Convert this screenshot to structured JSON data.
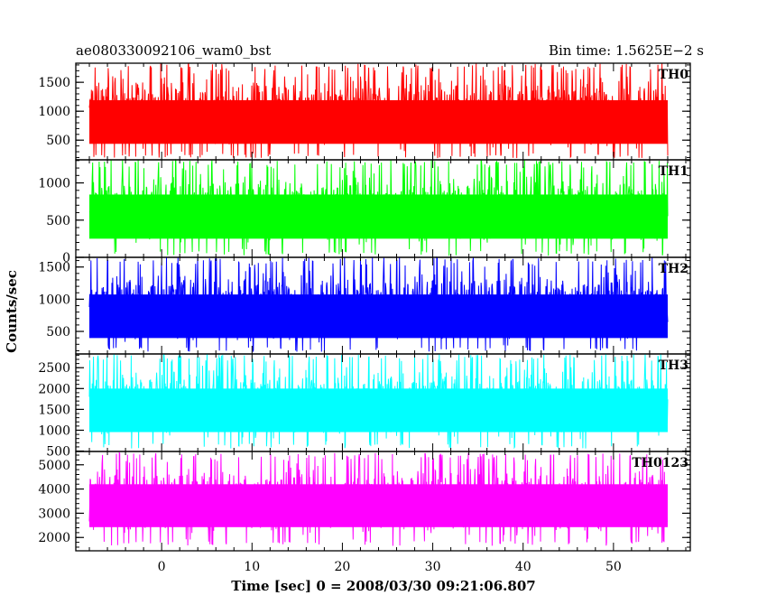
{
  "header": {
    "left": "ae080330092106_wam0_bst",
    "right": "Bin time: 1.5625E−2 s"
  },
  "chart_data": {
    "type": "line",
    "ylabel": "Counts/sec",
    "xlabel": "Time [sec] 0 = 2008/03/30 09:21:06.807",
    "xlim": [
      -9.5,
      58.5
    ],
    "x_data_range": [
      -8.0,
      56.0
    ],
    "xticks": [
      0,
      10,
      20,
      30,
      40,
      50
    ],
    "xtick_labels": [
      "0",
      "10",
      "20",
      "30",
      "40",
      "50"
    ],
    "grid": false,
    "panels": [
      {
        "name": "TH0",
        "color": "#ff0000",
        "ylim": [
          160,
          1830
        ],
        "yticks": [
          500,
          1000,
          1500
        ],
        "ytick_labels": [
          "500",
          "1000",
          "1500"
        ],
        "mean": 830,
        "lower": 190,
        "upper": 1830,
        "series": [
          {
            "x": [
              -8,
              -4,
              0,
              4,
              8,
              12,
              16,
              20,
              24,
              28,
              32,
              36,
              40,
              44,
              48,
              52,
              56
            ],
            "y": [
              840,
              820,
              850,
              830,
              845,
              825,
              835,
              830,
              840,
              820,
              850,
              830,
              835,
              840,
              825,
              830,
              835
            ]
          }
        ]
      },
      {
        "name": "TH1",
        "color": "#00ff00",
        "ylim": [
          0,
          1310
        ],
        "yticks": [
          0,
          500,
          1000
        ],
        "ytick_labels": [
          "0",
          "500",
          "1000"
        ],
        "mean": 560,
        "lower": 20,
        "upper": 1310,
        "series": [
          {
            "x": [
              -8,
              -4,
              0,
              4,
              8,
              12,
              16,
              20,
              24,
              28,
              32,
              36,
              40,
              44,
              48,
              52,
              56
            ],
            "y": [
              560,
              550,
              570,
              555,
              565,
              560,
              550,
              570,
              560,
              555,
              565,
              560,
              550,
              570,
              560,
              555,
              560
            ]
          }
        ]
      },
      {
        "name": "TH2",
        "color": "#0000ff",
        "ylim": [
          150,
          1650
        ],
        "yticks": [
          500,
          1000,
          1500
        ],
        "ytick_labels": [
          "500",
          "1000",
          "1500"
        ],
        "mean": 750,
        "lower": 180,
        "upper": 1650,
        "series": [
          {
            "x": [
              -8,
              -4,
              0,
              4,
              8,
              12,
              16,
              20,
              24,
              28,
              32,
              36,
              40,
              44,
              48,
              52,
              56
            ],
            "y": [
              750,
              740,
              760,
              745,
              755,
              750,
              740,
              760,
              750,
              745,
              755,
              750,
              740,
              760,
              750,
              745,
              750
            ]
          }
        ]
      },
      {
        "name": "TH3",
        "color": "#00ffff",
        "ylim": [
          490,
          2830
        ],
        "yticks": [
          500,
          1000,
          1500,
          2000,
          2500
        ],
        "ytick_labels": [
          "500",
          "1000",
          "1500",
          "2000",
          "2500"
        ],
        "mean": 1500,
        "lower": 560,
        "upper": 2830,
        "series": [
          {
            "x": [
              -8,
              -4,
              0,
              4,
              8,
              12,
              16,
              20,
              24,
              28,
              32,
              36,
              40,
              44,
              48,
              52,
              56
            ],
            "y": [
              1500,
              1480,
              1520,
              1490,
              1510,
              1500,
              1480,
              1520,
              1500,
              1490,
              1510,
              1500,
              1480,
              1520,
              1500,
              1490,
              1500
            ]
          }
        ]
      },
      {
        "name": "TH0123",
        "color": "#ff00ff",
        "ylim": [
          1450,
          5550
        ],
        "yticks": [
          2000,
          3000,
          4000,
          5000
        ],
        "ytick_labels": [
          "2000",
          "3000",
          "4000",
          "5000"
        ],
        "mean": 3350,
        "lower": 1650,
        "upper": 5500,
        "series": [
          {
            "x": [
              -8,
              -4,
              0,
              4,
              8,
              12,
              16,
              20,
              24,
              28,
              32,
              36,
              40,
              44,
              48,
              52,
              56
            ],
            "y": [
              3350,
              3320,
              3380,
              3340,
              3360,
              3350,
              3320,
              3380,
              3350,
              3340,
              3360,
              3350,
              3320,
              3380,
              3350,
              3340,
              3350
            ]
          }
        ]
      }
    ]
  }
}
